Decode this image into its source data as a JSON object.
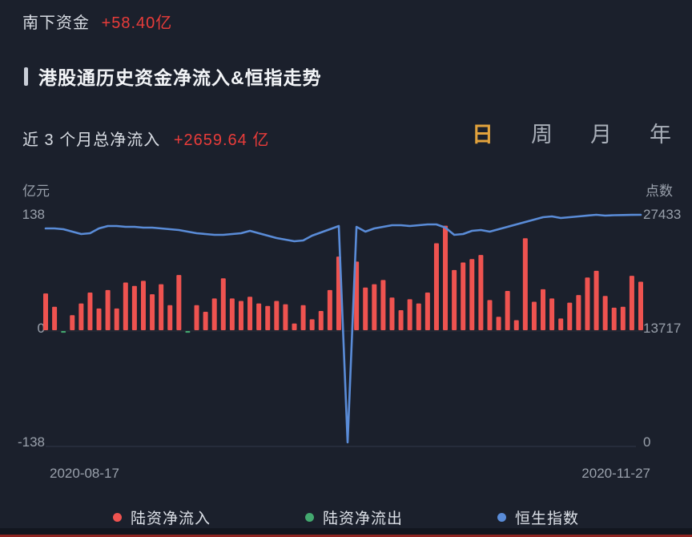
{
  "header": {
    "label": "南下资金",
    "value": "+58.40亿"
  },
  "section": {
    "title": "港股通历史资金净流入&恒指走势"
  },
  "summary": {
    "label": "近 3 个月总净流入",
    "value": "+2659.64 亿"
  },
  "tabs": [
    {
      "label": "日",
      "active": true
    },
    {
      "label": "周",
      "active": false
    },
    {
      "label": "月",
      "active": false
    },
    {
      "label": "年",
      "active": false
    }
  ],
  "axes": {
    "left_unit": "亿元",
    "right_unit": "点数",
    "left_ticks": [
      "138",
      "0",
      "-138"
    ],
    "right_ticks": [
      "27433",
      "13717",
      "0"
    ],
    "x_start": "2020-08-17",
    "x_end": "2020-11-27"
  },
  "legend": [
    {
      "label": "陆资净流入",
      "color": "#ef5350"
    },
    {
      "label": "陆资净流出",
      "color": "#43a86f"
    },
    {
      "label": "恒生指数",
      "color": "#5a8cd8"
    }
  ],
  "colors": {
    "background": "#1b202c",
    "accent_red": "#e93c3a",
    "bar_red": "#ef5350",
    "bar_green": "#43a86f",
    "line_blue": "#5a8cd8",
    "tab_active_gold": "#e2a23c",
    "axis_text": "#99a0ab"
  },
  "chart_data": {
    "type": "bar+line",
    "title": "港股通历史资金净流入&恒指走势 (日)",
    "x_range": [
      "2020-08-17",
      "2020-11-27"
    ],
    "bar_axis": {
      "label": "亿元",
      "min": -138,
      "max": 138,
      "ticks": [
        138,
        0,
        -138
      ]
    },
    "line_axis": {
      "label": "点数",
      "min": 0,
      "max": 27433,
      "ticks": [
        27433,
        13717,
        0
      ]
    },
    "grid": "bottom-baseline-only",
    "legend_position": "bottom-center",
    "bar_series": {
      "name": "陆资净流入/陆资净流出 (亿元, 负值为流出)",
      "values": [
        44,
        28,
        -2,
        18,
        32,
        45,
        26,
        48,
        26,
        57,
        53,
        59,
        43,
        55,
        30,
        66,
        -2,
        30,
        22,
        38,
        62,
        38,
        35,
        40,
        32,
        29,
        35,
        31,
        8,
        30,
        13,
        23,
        48,
        88,
        0,
        82,
        51,
        55,
        60,
        39,
        24,
        37,
        32,
        45,
        104,
        125,
        72,
        81,
        85,
        90,
        36,
        16,
        47,
        12,
        110,
        34,
        49,
        38,
        14,
        33,
        42,
        63,
        71,
        41,
        27,
        28,
        65,
        58
      ]
    },
    "line_series": {
      "name": "恒生指数 (点)",
      "values": [
        25790,
        25790,
        25694,
        25404,
        25115,
        25211,
        25791,
        26081,
        26081,
        25984,
        25984,
        25888,
        25888,
        25791,
        25694,
        25598,
        25404,
        25211,
        25115,
        25018,
        25018,
        25115,
        25211,
        25501,
        25211,
        24921,
        24631,
        24438,
        24245,
        24341,
        24921,
        25308,
        25694,
        26081,
        0,
        25984,
        25404,
        25791,
        25984,
        26177,
        26177,
        26081,
        26177,
        26274,
        26274,
        25888,
        25018,
        25115,
        25501,
        25598,
        25404,
        25694,
        25984,
        26274,
        26564,
        26854,
        27143,
        27240,
        27047,
        27143,
        27240,
        27350,
        27433,
        27337,
        27380,
        27400,
        27420,
        27433
      ]
    }
  }
}
